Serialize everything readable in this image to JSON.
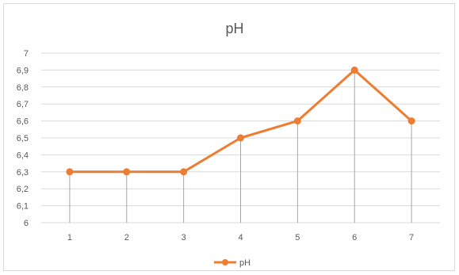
{
  "chart_data": {
    "type": "line",
    "title": "pH",
    "categories": [
      "1",
      "2",
      "3",
      "4",
      "5",
      "6",
      "7"
    ],
    "series": [
      {
        "name": "pH",
        "values": [
          6.3,
          6.3,
          6.3,
          6.5,
          6.6,
          6.9,
          6.6
        ]
      }
    ],
    "ylim": [
      6,
      7
    ],
    "yticks": [
      "6",
      "6,1",
      "6,2",
      "6,3",
      "6,4",
      "6,5",
      "6,6",
      "6,7",
      "6,8",
      "6,9",
      "7"
    ],
    "grid": true,
    "drop_lines": true,
    "legend_position": "bottom",
    "colors": {
      "series": "#ed7d31",
      "grid": "#d9d9d9",
      "drop_line": "#a6a6a6",
      "text": "#595959"
    }
  }
}
